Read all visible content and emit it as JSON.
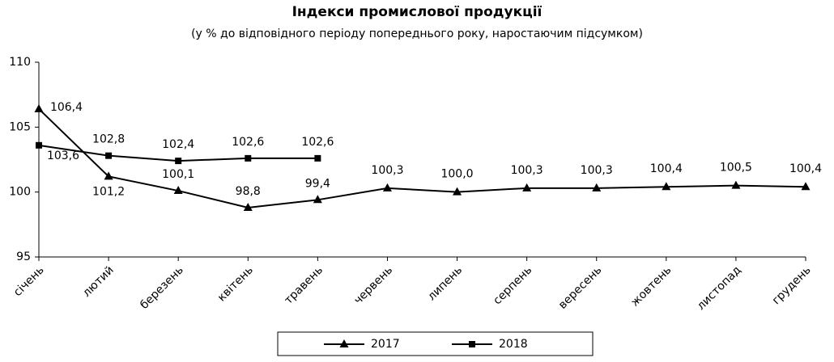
{
  "chart_data": {
    "type": "line",
    "title": "Індекси промислової продукції",
    "subtitle": "(у % до відповідного періоду попереднього року, наростаючим підсумком)",
    "categories": [
      "січень",
      "лютий",
      "березень",
      "квітень",
      "травень",
      "червень",
      "липень",
      "серпень",
      "вересень",
      "жовтень",
      "листопад",
      "грудень"
    ],
    "series": [
      {
        "name": "2017",
        "color": "#000000",
        "marker": "triangle",
        "values": [
          106.4,
          101.2,
          100.1,
          98.8,
          99.4,
          100.3,
          100.0,
          100.3,
          100.3,
          100.4,
          100.5,
          100.4
        ],
        "value_labels": [
          "106,4",
          "101,2",
          "100,1",
          "98,8",
          "99,4",
          "100,3",
          "100,0",
          "100,3",
          "100,3",
          "100,4",
          "100,5",
          "100,4"
        ]
      },
      {
        "name": "2018",
        "color": "#000000",
        "marker": "square",
        "values": [
          103.6,
          102.8,
          102.4,
          102.6,
          102.6,
          null,
          null,
          null,
          null,
          null,
          null,
          null
        ],
        "value_labels": [
          "103,6",
          "102,8",
          "102,4",
          "102,6",
          "102,6",
          null,
          null,
          null,
          null,
          null,
          null,
          null
        ]
      }
    ],
    "ylim": [
      95,
      110
    ],
    "yticks": [
      95,
      100,
      105,
      110
    ],
    "grid": false,
    "legend": "bottom"
  }
}
